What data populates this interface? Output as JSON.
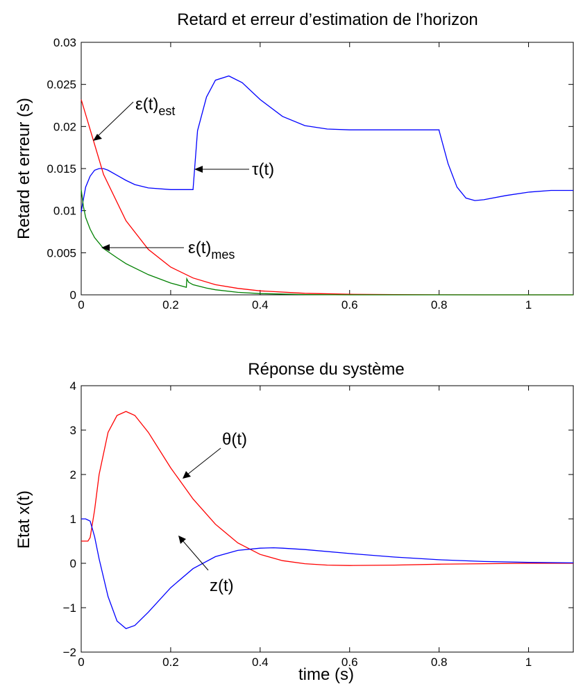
{
  "chart_data": [
    {
      "type": "line",
      "title": "Retard et erreur d’estimation de l’horizon",
      "xlabel": "",
      "ylabel": "Retard et erreur (s)",
      "xlim": [
        0,
        1.1
      ],
      "ylim": [
        0,
        0.03
      ],
      "xticks": [
        "0",
        "0.2",
        "0.4",
        "0.6",
        "0.8",
        "1"
      ],
      "yticks": [
        "0",
        "0.005",
        "0.01",
        "0.015",
        "0.02",
        "0.025",
        "0.03"
      ],
      "grid": false,
      "series": [
        {
          "name": "τ(t)",
          "color": "#0000ff",
          "x": [
            0,
            0.003,
            0.01,
            0.02,
            0.03,
            0.04,
            0.05,
            0.06,
            0.08,
            0.1,
            0.12,
            0.15,
            0.2,
            0.25,
            0.2501,
            0.26,
            0.28,
            0.3,
            0.33,
            0.36,
            0.4,
            0.45,
            0.5,
            0.55,
            0.6,
            0.7,
            0.8,
            0.8001,
            0.82,
            0.84,
            0.86,
            0.88,
            0.9,
            0.95,
            1.0,
            1.05,
            1.1
          ],
          "y": [
            0.0098,
            0.0108,
            0.0128,
            0.0141,
            0.0148,
            0.015,
            0.015,
            0.0148,
            0.0142,
            0.0136,
            0.0131,
            0.0127,
            0.0125,
            0.0125,
            0.0126,
            0.0195,
            0.0235,
            0.0255,
            0.026,
            0.0252,
            0.0232,
            0.0212,
            0.0201,
            0.0197,
            0.0196,
            0.0196,
            0.0196,
            0.0195,
            0.0156,
            0.0128,
            0.0115,
            0.0112,
            0.0113,
            0.0118,
            0.0122,
            0.0124,
            0.0124
          ]
        },
        {
          "name": "ε(t)est",
          "color": "#ff0000",
          "x": [
            0,
            0.05,
            0.1,
            0.15,
            0.2,
            0.25,
            0.3,
            0.35,
            0.4,
            0.5,
            0.6,
            0.7,
            0.8,
            0.9,
            1.0,
            1.1
          ],
          "y": [
            0.0232,
            0.0143,
            0.0088,
            0.0054,
            0.0033,
            0.002,
            0.0012,
            0.00077,
            0.00047,
            0.00018,
            7e-05,
            3e-05,
            1e-05,
            0,
            0,
            0
          ]
        },
        {
          "name": "ε(t)mes",
          "color": "#008000",
          "x": [
            0,
            0.005,
            0.01,
            0.02,
            0.03,
            0.05,
            0.08,
            0.1,
            0.15,
            0.2,
            0.235,
            0.236,
            0.24,
            0.25,
            0.28,
            0.3,
            0.35,
            0.4,
            0.5,
            0.6,
            0.8,
            1.1
          ],
          "y": [
            0.0125,
            0.0105,
            0.0092,
            0.0078,
            0.0068,
            0.0055,
            0.0044,
            0.0037,
            0.0024,
            0.0014,
            0.0009,
            0.0019,
            0.0015,
            0.0012,
            0.0008,
            0.0006,
            0.0003,
            0.00015,
            3e-05,
            0,
            0,
            0
          ]
        }
      ],
      "annotations": [
        {
          "text": "ε(t)",
          "sub": "est"
        },
        {
          "text": "τ(t)",
          "sub": ""
        },
        {
          "text": "ε(t)",
          "sub": "mes"
        }
      ]
    },
    {
      "type": "line",
      "title": "Réponse du système",
      "xlabel": "time (s)",
      "ylabel": "Etat x(t)",
      "xlim": [
        0,
        1.1
      ],
      "ylim": [
        -2,
        4
      ],
      "xticks": [
        "0",
        "0.2",
        "0.4",
        "0.6",
        "0.8",
        "1"
      ],
      "yticks": [
        "−2",
        "−1",
        "0",
        "1",
        "2",
        "3",
        "4"
      ],
      "grid": false,
      "series": [
        {
          "name": "θ(t)",
          "color": "#ff0000",
          "x": [
            0,
            0.015,
            0.02,
            0.03,
            0.04,
            0.06,
            0.08,
            0.1,
            0.12,
            0.15,
            0.2,
            0.25,
            0.3,
            0.35,
            0.4,
            0.45,
            0.5,
            0.55,
            0.6,
            0.7,
            0.8,
            0.9,
            1.0,
            1.1
          ],
          "y": [
            0.5,
            0.5,
            0.58,
            1.2,
            2.0,
            2.95,
            3.33,
            3.42,
            3.33,
            2.95,
            2.15,
            1.45,
            0.88,
            0.46,
            0.2,
            0.06,
            -0.01,
            -0.04,
            -0.05,
            -0.04,
            -0.02,
            -0.01,
            0.0,
            0.0
          ]
        },
        {
          "name": "z(t)",
          "color": "#0000ff",
          "x": [
            0,
            0.01,
            0.02,
            0.03,
            0.04,
            0.06,
            0.08,
            0.1,
            0.12,
            0.15,
            0.2,
            0.25,
            0.3,
            0.35,
            0.4,
            0.43,
            0.45,
            0.5,
            0.6,
            0.7,
            0.8,
            0.9,
            1.0,
            1.1
          ],
          "y": [
            1.0,
            1.0,
            0.95,
            0.6,
            0.1,
            -0.75,
            -1.3,
            -1.47,
            -1.4,
            -1.1,
            -0.55,
            -0.12,
            0.15,
            0.29,
            0.34,
            0.35,
            0.34,
            0.31,
            0.22,
            0.14,
            0.08,
            0.04,
            0.02,
            0.01
          ]
        }
      ],
      "annotations": [
        {
          "text": "θ(t)",
          "sub": ""
        },
        {
          "text": "z(t)",
          "sub": ""
        }
      ]
    }
  ]
}
